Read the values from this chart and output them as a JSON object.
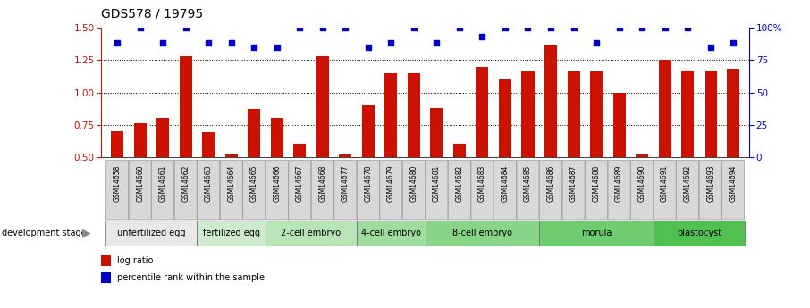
{
  "title": "GDS578 / 19795",
  "samples": [
    "GSM14658",
    "GSM14660",
    "GSM14661",
    "GSM14662",
    "GSM14663",
    "GSM14664",
    "GSM14665",
    "GSM14666",
    "GSM14667",
    "GSM14668",
    "GSM14677",
    "GSM14678",
    "GSM14679",
    "GSM14680",
    "GSM14681",
    "GSM14682",
    "GSM14683",
    "GSM14684",
    "GSM14685",
    "GSM14686",
    "GSM14687",
    "GSM14688",
    "GSM14689",
    "GSM14690",
    "GSM14691",
    "GSM14692",
    "GSM14693",
    "GSM14694"
  ],
  "log_ratio": [
    0.7,
    0.76,
    0.8,
    1.28,
    0.69,
    0.52,
    0.87,
    0.8,
    0.6,
    1.28,
    0.52,
    0.9,
    1.15,
    1.15,
    0.88,
    0.6,
    1.2,
    1.1,
    1.16,
    1.37,
    1.16,
    1.16,
    1.0,
    0.52,
    1.25,
    1.17,
    1.17,
    1.18
  ],
  "percentile": [
    88,
    100,
    88,
    100,
    88,
    88,
    85,
    85,
    100,
    100,
    100,
    85,
    88,
    100,
    88,
    100,
    93,
    100,
    100,
    100,
    100,
    88,
    100,
    100,
    100,
    100,
    85,
    88
  ],
  "stage_groups": [
    {
      "label": "unfertilized egg",
      "start": 0,
      "end": 3,
      "color": "#e8e8e8"
    },
    {
      "label": "fertilized egg",
      "start": 4,
      "end": 6,
      "color": "#c8ecc8"
    },
    {
      "label": "2-cell embryo",
      "start": 7,
      "end": 10,
      "color": "#c8ecc8"
    },
    {
      "label": "4-cell embryo",
      "start": 11,
      "end": 13,
      "color": "#a8e4a8"
    },
    {
      "label": "8-cell embryo",
      "start": 14,
      "end": 18,
      "color": "#a8e4a8"
    },
    {
      "label": "morula",
      "start": 19,
      "end": 23,
      "color": "#78d878"
    },
    {
      "label": "blastocyst",
      "start": 24,
      "end": 27,
      "color": "#50d050"
    }
  ],
  "bar_color": "#cc1100",
  "dot_color": "#0000cc",
  "ylim_left": [
    0.5,
    1.5
  ],
  "ylim_right": [
    0,
    100
  ],
  "yticks_left": [
    0.5,
    0.75,
    1.0,
    1.25,
    1.5
  ],
  "yticks_right": [
    0,
    25,
    50,
    75,
    100
  ],
  "hlines": [
    0.75,
    1.0,
    1.25
  ],
  "background_color": "#ffffff",
  "title_fontsize": 10,
  "tick_fontsize": 7.5,
  "bar_width": 0.55,
  "label_box_color": "#d8d8d8",
  "label_box_edge": "#888888"
}
